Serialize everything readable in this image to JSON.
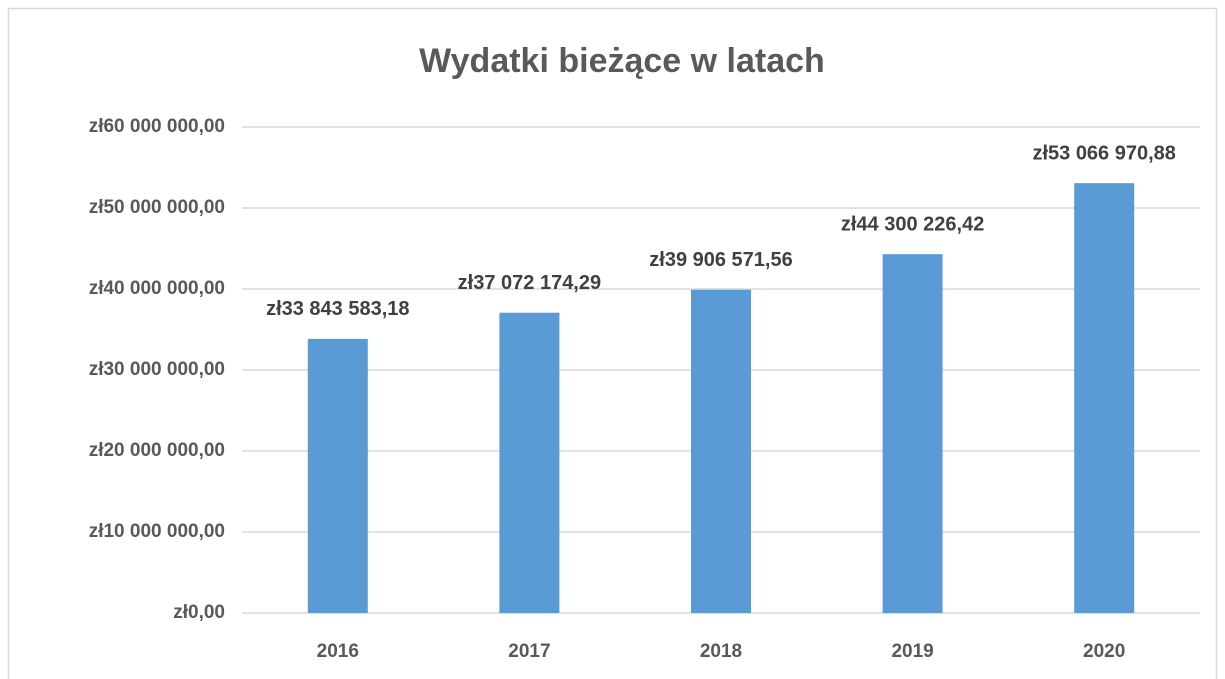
{
  "chart_data": {
    "type": "bar",
    "title": "Wydatki bieżące w latach",
    "categories": [
      "2016",
      "2017",
      "2018",
      "2019",
      "2020"
    ],
    "values": [
      33843583.18,
      37072174.29,
      39906571.56,
      44300226.42,
      53066970.88
    ],
    "value_labels": [
      "zł33 843 583,18",
      "zł37 072 174,29",
      "zł39 906 571,56",
      "zł44 300 226,42",
      "zł53 066 970,88"
    ],
    "color": "#5b9bd5",
    "ylim": [
      0,
      60000000
    ],
    "yticks": [
      {
        "value": 0,
        "label": "zł0,00"
      },
      {
        "value": 10000000,
        "label": "zł10 000 000,00"
      },
      {
        "value": 20000000,
        "label": "zł20 000 000,00"
      },
      {
        "value": 30000000,
        "label": "zł30 000 000,00"
      },
      {
        "value": 40000000,
        "label": "zł40 000 000,00"
      },
      {
        "value": 50000000,
        "label": "zł50 000 000,00"
      },
      {
        "value": 60000000,
        "label": "zł60 000 000,00"
      }
    ],
    "grid": true
  }
}
